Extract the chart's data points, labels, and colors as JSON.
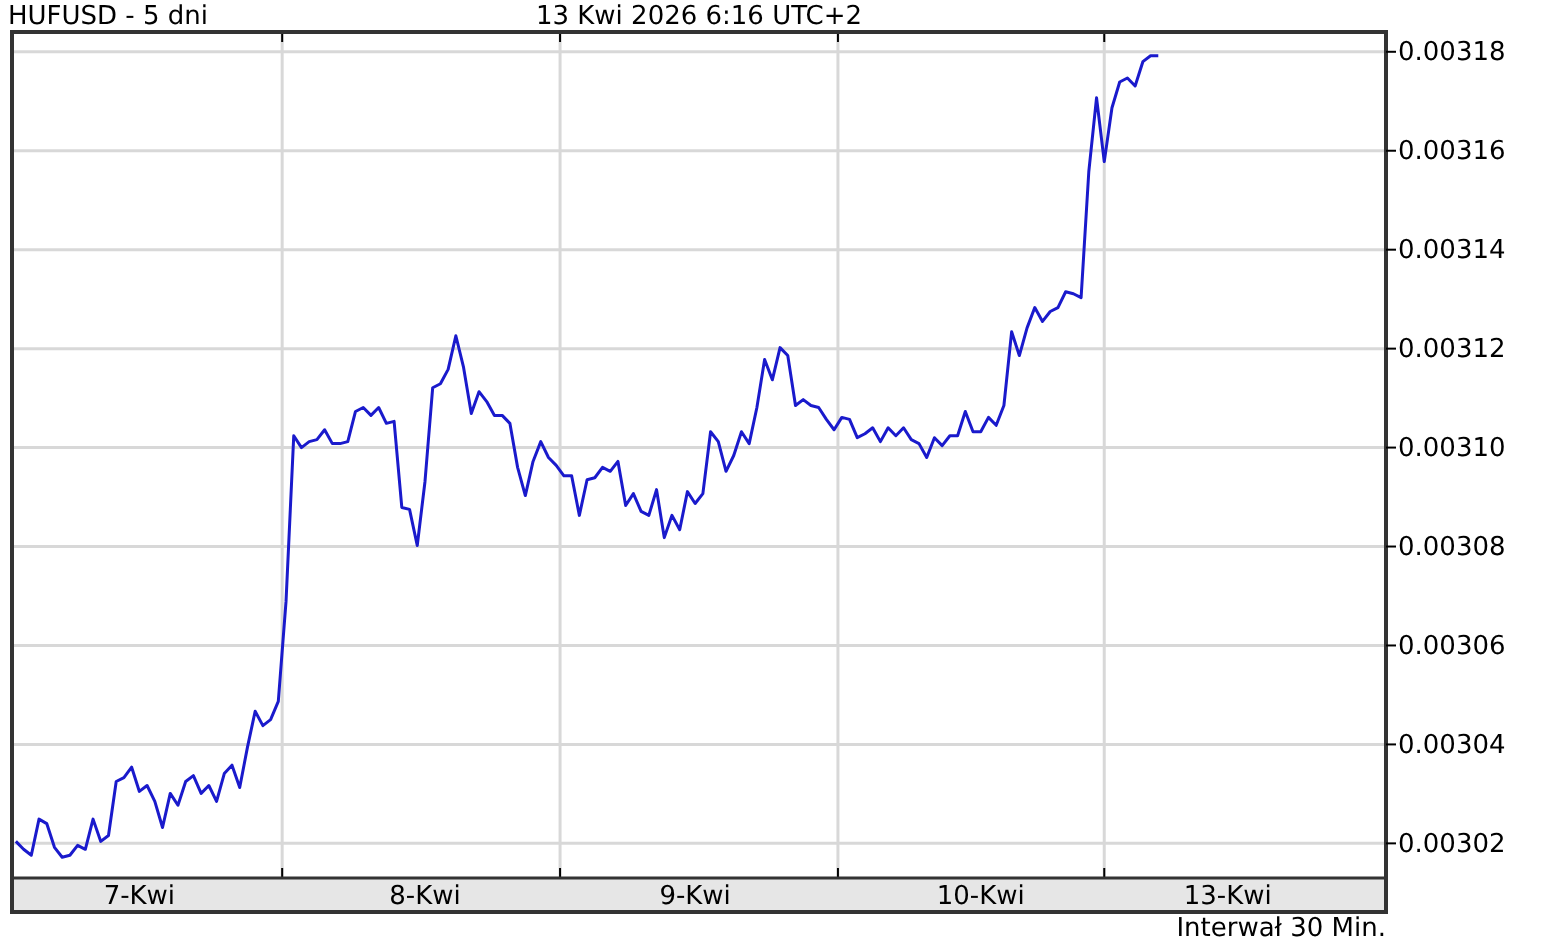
{
  "chart_data": {
    "type": "line",
    "title": "HUFUSD - 5 dni",
    "subtitle": "13 Kwi 2026 6:16 UTC+2",
    "annotations": [
      "Interwał 30 Min."
    ],
    "categories": [
      null,
      null,
      null,
      null,
      null,
      null,
      null,
      null,
      null,
      null,
      null,
      null,
      null,
      null,
      null,
      null,
      "7-Kwi",
      null,
      null,
      null,
      null,
      null,
      null,
      null,
      null,
      null,
      null,
      null,
      null,
      null,
      null,
      null,
      null,
      null,
      null,
      null,
      null,
      null,
      null,
      null,
      null,
      null,
      null,
      null,
      null,
      null,
      null,
      null,
      null,
      null,
      null,
      null,
      null,
      "8-Kwi",
      null,
      null,
      null,
      null,
      null,
      null,
      null,
      null,
      null,
      null,
      null,
      null,
      null,
      null,
      null,
      null,
      null,
      null,
      null,
      null,
      null,
      null,
      null,
      null,
      null,
      null,
      null,
      null,
      null,
      null,
      null,
      null,
      null,
      null,
      "9-Kwi",
      null,
      null,
      null,
      null,
      null,
      null,
      null,
      null,
      null,
      null,
      null,
      null,
      null,
      null,
      null,
      null,
      null,
      null,
      null,
      null,
      null,
      null,
      null,
      null,
      null,
      null,
      null,
      null,
      null,
      null,
      null,
      null,
      null,
      null,
      null,
      null,
      "10-Kwi",
      null,
      null,
      null,
      null,
      null,
      null,
      null,
      null,
      null,
      null,
      null,
      null,
      null,
      null,
      null,
      null,
      null,
      null,
      null,
      null,
      null,
      null,
      null,
      null,
      null,
      null,
      null,
      null,
      null,
      null,
      null,
      "13-Kwi",
      null,
      null,
      null,
      null,
      null,
      null,
      null,
      null,
      null,
      null,
      null,
      null,
      null,
      null,
      null,
      null,
      null,
      null,
      null,
      null
    ],
    "series": [
      {
        "color": "#1a1acc",
        "values": [
          0.0030204,
          0.0030188,
          0.0030176,
          0.0030249,
          0.003024,
          0.0030192,
          0.0030172,
          0.0030176,
          0.0030196,
          0.0030188,
          0.0030249,
          0.0030204,
          0.0030216,
          0.0030325,
          0.0030333,
          0.0030354,
          0.0030305,
          0.0030317,
          0.0030285,
          0.0030232,
          0.0030301,
          0.0030277,
          0.0030325,
          0.0030337,
          0.0030301,
          0.0030317,
          0.0030285,
          0.0030341,
          0.0030358,
          0.0030313,
          0.0030394,
          0.0030467,
          0.0030438,
          0.003045,
          0.0030487,
          0.0030689,
          0.0031024,
          0.0031,
          0.0031012,
          0.0031016,
          0.0031036,
          0.0031008,
          0.0031008,
          0.0031012,
          0.0031073,
          0.0031081,
          0.0031065,
          0.0031081,
          0.0031049,
          0.0031053,
          0.0030879,
          0.0030875,
          0.0030802,
          0.0030931,
          0.0031121,
          0.0031129,
          0.0031158,
          0.0031226,
          0.0031162,
          0.0031069,
          0.0031113,
          0.0031093,
          0.0031065,
          0.0031065,
          0.0031049,
          0.003096,
          0.0030903,
          0.0030972,
          0.0031012,
          0.003098,
          0.0030964,
          0.0030943,
          0.0030943,
          0.0030863,
          0.0030935,
          0.0030939,
          0.003096,
          0.0030952,
          0.0030972,
          0.0030883,
          0.0030907,
          0.0030871,
          0.0030863,
          0.0030915,
          0.0030818,
          0.0030863,
          0.0030834,
          0.0030911,
          0.0030887,
          0.0030907,
          0.0031032,
          0.0031012,
          0.0030952,
          0.0030984,
          0.0031032,
          0.0031008,
          0.0031081,
          0.0031178,
          0.0031137,
          0.0031202,
          0.0031186,
          0.0031085,
          0.0031097,
          0.0031085,
          0.0031081,
          0.0031057,
          0.0031036,
          0.0031061,
          0.0031057,
          0.003102,
          0.0031028,
          0.003104,
          0.0031012,
          0.003104,
          0.0031024,
          0.003104,
          0.0031016,
          0.0031008,
          0.003098,
          0.003102,
          0.0031004,
          0.0031024,
          0.0031024,
          0.0031073,
          0.0031032,
          0.0031032,
          0.0031061,
          0.0031045,
          0.0031085,
          0.0031234,
          0.0031186,
          0.0031242,
          0.0031283,
          0.0031255,
          0.0031275,
          0.0031283,
          0.0031315,
          0.0031311,
          0.0031303,
          0.0031558,
          0.0031707,
          0.0031578,
          0.0031687,
          0.0031739,
          0.0031747,
          0.0031731,
          0.003178,
          0.0031792,
          0.0031792,
          null,
          null,
          null,
          null,
          null,
          null,
          null,
          null,
          null,
          null,
          null,
          null,
          null,
          null,
          null,
          null,
          null,
          null,
          null,
          null,
          null,
          null,
          null,
          null,
          null,
          null,
          null,
          null,
          null
        ]
      }
    ],
    "ylim": [
      0.003013,
      0.003184
    ],
    "yticks": [
      0.00302,
      0.00304,
      0.00306,
      0.00308,
      {
        "value": 0.0031,
        "label": "0.00310"
      },
      0.00312,
      0.00314,
      0.00316,
      0.00318
    ],
    "grid": true,
    "marker": "none",
    "line_style": "solid"
  }
}
